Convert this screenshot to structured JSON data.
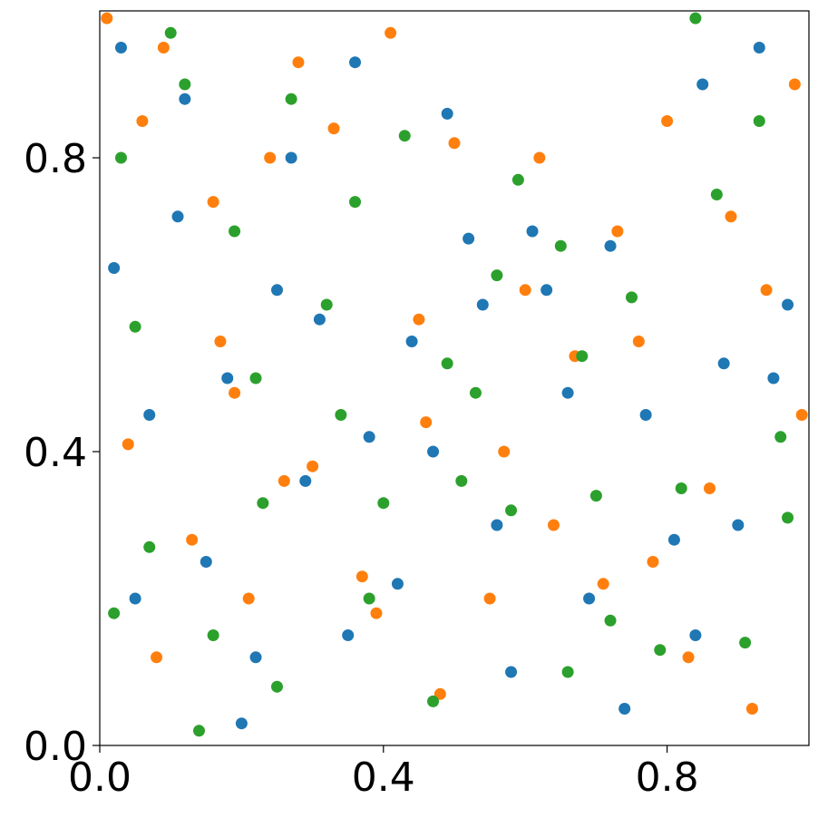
{
  "chart_data": {
    "type": "scatter",
    "xlim": [
      0,
      1
    ],
    "ylim": [
      0,
      1
    ],
    "xticks": [
      {
        "value": 0,
        "label": "0.0"
      },
      0.4,
      0.8
    ],
    "yticks": [
      {
        "value": 0,
        "label": "0.0"
      },
      0.4,
      0.8
    ],
    "grid": false,
    "series": [
      {
        "color": "#1f77b4",
        "x": [
          0.03,
          0.12,
          0.25,
          0.31,
          0.44,
          0.52,
          0.61,
          0.72,
          0.85,
          0.93,
          0.07,
          0.18,
          0.29,
          0.38,
          0.47,
          0.56,
          0.66,
          0.77,
          0.88,
          0.97,
          0.05,
          0.15,
          0.22,
          0.35,
          0.42,
          0.58,
          0.69,
          0.81,
          0.9,
          0.02,
          0.11,
          0.27,
          0.36,
          0.49,
          0.63,
          0.74,
          0.84,
          0.95,
          0.2,
          0.54
        ],
        "y": [
          0.95,
          0.88,
          0.62,
          0.58,
          0.55,
          0.69,
          0.7,
          0.68,
          0.9,
          0.95,
          0.45,
          0.5,
          0.36,
          0.42,
          0.4,
          0.3,
          0.48,
          0.45,
          0.52,
          0.6,
          0.2,
          0.25,
          0.12,
          0.15,
          0.22,
          0.1,
          0.2,
          0.28,
          0.3,
          0.65,
          0.72,
          0.8,
          0.93,
          0.86,
          0.62,
          0.05,
          0.15,
          0.5,
          0.03,
          0.6
        ]
      },
      {
        "color": "#ff7f0e",
        "x": [
          0.01,
          0.09,
          0.16,
          0.24,
          0.33,
          0.41,
          0.5,
          0.6,
          0.71,
          0.8,
          0.89,
          0.98,
          0.04,
          0.13,
          0.21,
          0.3,
          0.39,
          0.48,
          0.57,
          0.67,
          0.76,
          0.86,
          0.94,
          0.08,
          0.19,
          0.26,
          0.37,
          0.46,
          0.55,
          0.64,
          0.73,
          0.83,
          0.92,
          0.06,
          0.17,
          0.28,
          0.45,
          0.62,
          0.78,
          0.99
        ],
        "y": [
          0.99,
          0.95,
          0.74,
          0.8,
          0.84,
          0.97,
          0.82,
          0.62,
          0.22,
          0.85,
          0.72,
          0.9,
          0.41,
          0.28,
          0.2,
          0.38,
          0.18,
          0.07,
          0.4,
          0.53,
          0.55,
          0.35,
          0.62,
          0.12,
          0.48,
          0.36,
          0.23,
          0.44,
          0.2,
          0.3,
          0.7,
          0.12,
          0.05,
          0.85,
          0.55,
          0.93,
          0.58,
          0.8,
          0.25,
          0.45
        ]
      },
      {
        "color": "#2ca02c",
        "x": [
          0.02,
          0.1,
          0.19,
          0.27,
          0.36,
          0.43,
          0.51,
          0.59,
          0.68,
          0.75,
          0.84,
          0.93,
          0.05,
          0.14,
          0.23,
          0.32,
          0.4,
          0.49,
          0.58,
          0.7,
          0.79,
          0.87,
          0.96,
          0.07,
          0.16,
          0.25,
          0.34,
          0.47,
          0.53,
          0.65,
          0.72,
          0.82,
          0.91,
          0.03,
          0.12,
          0.22,
          0.38,
          0.56,
          0.66,
          0.97
        ],
        "y": [
          0.18,
          0.97,
          0.7,
          0.88,
          0.74,
          0.83,
          0.36,
          0.77,
          0.53,
          0.61,
          0.99,
          0.85,
          0.57,
          0.02,
          0.33,
          0.6,
          0.33,
          0.52,
          0.32,
          0.34,
          0.13,
          0.75,
          0.42,
          0.27,
          0.15,
          0.08,
          0.45,
          0.06,
          0.48,
          0.68,
          0.17,
          0.35,
          0.14,
          0.8,
          0.9,
          0.5,
          0.2,
          0.64,
          0.1,
          0.31
        ]
      }
    ]
  }
}
